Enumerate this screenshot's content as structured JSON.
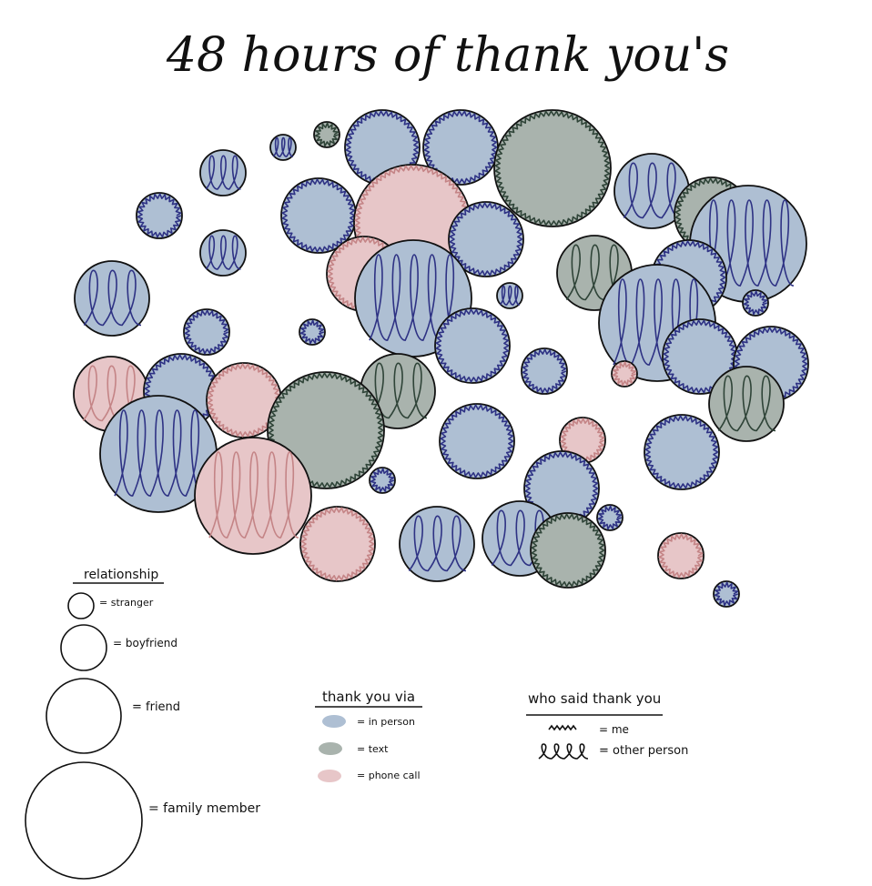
{
  "title": "48 hours of thank you's",
  "colors": {
    "in_person_fill": "#aebfd3",
    "in_person_edge": "#2e3284",
    "text_fill": "#a9b3ad",
    "text_edge": "#2f4438",
    "phone_fill": "#e7c6c8",
    "phone_edge": "#c48486",
    "outline": "#111111"
  },
  "legend": {
    "relationship": {
      "heading": "relationship",
      "items": [
        {
          "key": "stranger",
          "label": "= stranger"
        },
        {
          "key": "boyfriend",
          "label": "= boyfriend"
        },
        {
          "key": "friend",
          "label": "= friend"
        },
        {
          "key": "family",
          "label": "= family member"
        }
      ]
    },
    "via": {
      "heading": "thank you via",
      "items": [
        {
          "key": "in_person",
          "label": "= in person"
        },
        {
          "key": "text",
          "label": "= text"
        },
        {
          "key": "phone_call",
          "label": "= phone call"
        }
      ]
    },
    "who": {
      "heading": "who said thank you",
      "items": [
        {
          "key": "me",
          "label": "= me"
        },
        {
          "key": "other",
          "label": "= other person"
        }
      ]
    }
  },
  "thank_yous": [
    {
      "rel": "friend",
      "via": "in_person",
      "who": "other"
    },
    {
      "rel": "boyfriend",
      "via": "in_person",
      "who": "other"
    },
    {
      "rel": "stranger",
      "via": "in_person",
      "who": "other"
    },
    {
      "rel": "stranger",
      "via": "text",
      "who": "me"
    },
    {
      "rel": "friend",
      "via": "in_person",
      "who": "me"
    },
    {
      "rel": "friend",
      "via": "in_person",
      "who": "me"
    },
    {
      "rel": "family",
      "via": "text",
      "who": "me"
    },
    {
      "rel": "friend",
      "via": "in_person",
      "who": "other"
    },
    {
      "rel": "boyfriend",
      "via": "in_person",
      "who": "me"
    },
    {
      "rel": "boyfriend",
      "via": "in_person",
      "who": "other"
    },
    {
      "rel": "friend",
      "via": "in_person",
      "who": "me"
    },
    {
      "rel": "family",
      "via": "phone_call",
      "who": "me"
    },
    {
      "rel": "friend",
      "via": "in_person",
      "who": "me"
    },
    {
      "rel": "friend",
      "via": "text",
      "who": "other"
    },
    {
      "rel": "friend",
      "via": "text",
      "who": "me"
    },
    {
      "rel": "family",
      "via": "in_person",
      "who": "other"
    },
    {
      "rel": "friend",
      "via": "phone_call",
      "who": "me"
    },
    {
      "rel": "family",
      "via": "in_person",
      "who": "other"
    },
    {
      "rel": "stranger",
      "via": "in_person",
      "who": "other"
    },
    {
      "rel": "friend",
      "via": "in_person",
      "who": "me"
    },
    {
      "rel": "stranger",
      "via": "in_person",
      "who": "me"
    },
    {
      "rel": "boyfriend",
      "via": "in_person",
      "who": "me"
    },
    {
      "rel": "stranger",
      "via": "in_person",
      "who": "me"
    },
    {
      "rel": "friend",
      "via": "in_person",
      "who": "me"
    },
    {
      "rel": "family",
      "via": "in_person",
      "who": "other"
    },
    {
      "rel": "friend",
      "via": "phone_call",
      "who": "other"
    },
    {
      "rel": "friend",
      "via": "in_person",
      "who": "me"
    },
    {
      "rel": "friend",
      "via": "phone_call",
      "who": "me"
    },
    {
      "rel": "friend",
      "via": "text",
      "who": "other"
    },
    {
      "rel": "boyfriend",
      "via": "in_person",
      "who": "me"
    },
    {
      "rel": "stranger",
      "via": "phone_call",
      "who": "me"
    },
    {
      "rel": "friend",
      "via": "in_person",
      "who": "me"
    },
    {
      "rel": "friend",
      "via": "in_person",
      "who": "me"
    },
    {
      "rel": "family",
      "via": "text",
      "who": "me"
    },
    {
      "rel": "friend",
      "via": "in_person",
      "who": "me"
    },
    {
      "rel": "boyfriend",
      "via": "phone_call",
      "who": "me"
    },
    {
      "rel": "friend",
      "via": "text",
      "who": "other"
    },
    {
      "rel": "family",
      "via": "in_person",
      "who": "other"
    },
    {
      "rel": "family",
      "via": "phone_call",
      "who": "other"
    },
    {
      "rel": "friend",
      "via": "in_person",
      "who": "me"
    },
    {
      "rel": "stranger",
      "via": "in_person",
      "who": "me"
    },
    {
      "rel": "friend",
      "via": "in_person",
      "who": "me"
    },
    {
      "rel": "friend",
      "via": "phone_call",
      "who": "me"
    },
    {
      "rel": "friend",
      "via": "in_person",
      "who": "other"
    },
    {
      "rel": "friend",
      "via": "in_person",
      "who": "other"
    },
    {
      "rel": "stranger",
      "via": "in_person",
      "who": "me"
    },
    {
      "rel": "friend",
      "via": "text",
      "who": "me"
    },
    {
      "rel": "boyfriend",
      "via": "phone_call",
      "who": "me"
    },
    {
      "rel": "stranger",
      "via": "in_person",
      "who": "me"
    }
  ]
}
